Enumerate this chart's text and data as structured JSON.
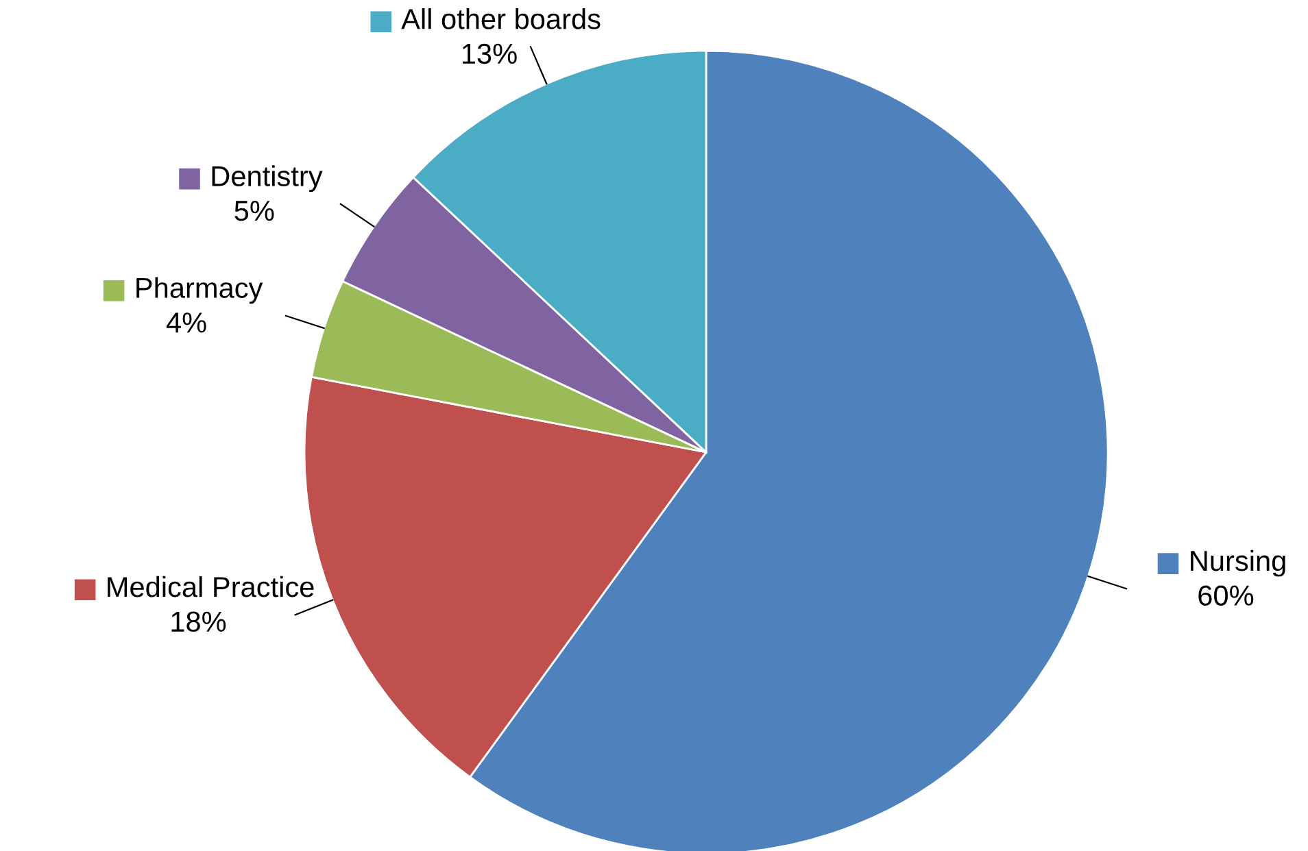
{
  "chart_data": {
    "type": "pie",
    "categories": [
      "Nursing",
      "Medical Practice",
      "Pharmacy",
      "Dentistry",
      "All other boards"
    ],
    "values": [
      60,
      18,
      4,
      5,
      13
    ],
    "value_labels": [
      "60%",
      "18%",
      "4%",
      "5%",
      "13%"
    ],
    "colors": [
      "#4f81bd",
      "#c0504d",
      "#9bbb59",
      "#8064a2",
      "#4bacc6"
    ],
    "legend": "left"
  }
}
